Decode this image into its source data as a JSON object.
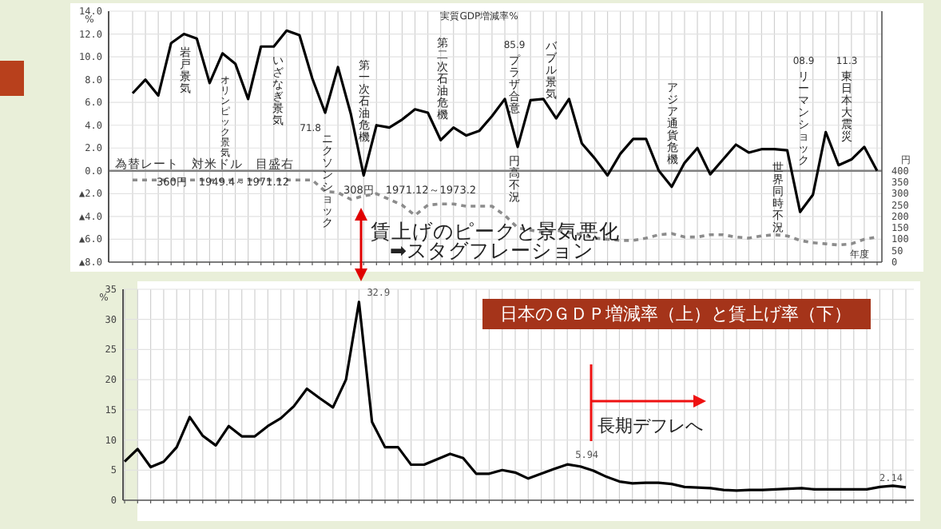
{
  "chart_data": [
    {
      "type": "line",
      "title": "実質GDP増減率%",
      "xlabel": "年度",
      "ylabel": "%",
      "y2label": "円",
      "categories": [
        null,
        null,
        null,
        null,
        null,
        null,
        null,
        null,
        null,
        null,
        null,
        null,
        null,
        null,
        null,
        null,
        null,
        null,
        null,
        null,
        null,
        null,
        null,
        null,
        null,
        null,
        null,
        null,
        null,
        null,
        null,
        null,
        null,
        null,
        null,
        null,
        null,
        null,
        null,
        null,
        null,
        null,
        null,
        null,
        null,
        null,
        null,
        null,
        null,
        null,
        null,
        null,
        null,
        null,
        null,
        null,
        null,
        null,
        null
      ],
      "ylim": [
        -8,
        14
      ],
      "yticks": [
        {
          "value": 14,
          "label": "14.0"
        },
        {
          "value": 12,
          "label": "12.0"
        },
        {
          "value": 10,
          "label": "10.0"
        },
        {
          "value": 8,
          "label": "8.0"
        },
        {
          "value": 6,
          "label": "6.0"
        },
        {
          "value": 4,
          "label": "4.0"
        },
        {
          "value": 2,
          "label": "2.0"
        },
        {
          "value": 0,
          "label": "0.0"
        },
        {
          "value": -2,
          "label": "▲2.0"
        },
        {
          "value": -4,
          "label": "▲4.0"
        },
        {
          "value": -6,
          "label": "▲6.0"
        },
        {
          "value": -8,
          "label": "▲8.0"
        }
      ],
      "y2lim": [
        0,
        1100
      ],
      "y2ticks": [
        0,
        50,
        100,
        150,
        200,
        250,
        300,
        350,
        400
      ],
      "grid": true,
      "ref_lines": [
        {
          "axis": "y",
          "value": 0,
          "color": "#808080"
        }
      ],
      "annotations": [
        "岩戸景気",
        "オリンピック景気",
        "いざなぎ景気",
        "71.8",
        "ニクソンショック",
        "第一次石油危機",
        "第二次石油危機",
        "85.9",
        "プラザ合意",
        "円高不況",
        "バブル景気",
        "アジア通貨危機",
        "08.9",
        "リーマンショック",
        "世界同時不況",
        "11.3",
        "東日本大震災",
        "為替レート　対米ドル　目盛右",
        "360円　1949.4～1971.12",
        "308円　1971.12～1973.2"
      ],
      "series": [
        {
          "color": "#000000",
          "values": [
            6.8,
            8.0,
            6.6,
            11.2,
            12.0,
            11.6,
            7.7,
            10.3,
            9.4,
            6.3,
            10.9,
            10.9,
            12.3,
            11.9,
            8.1,
            5.1,
            9.1,
            5.0,
            -0.4,
            4.0,
            3.8,
            4.5,
            5.4,
            5.1,
            2.7,
            3.8,
            3.1,
            3.5,
            4.8,
            6.3,
            2.1,
            6.2,
            6.3,
            4.6,
            6.3,
            2.4,
            1.1,
            -0.4,
            1.5,
            2.8,
            2.8,
            0.0,
            -1.4,
            0.7,
            2.0,
            -0.3,
            1.0,
            2.3,
            1.6,
            1.9,
            1.9,
            1.8,
            -3.6,
            -2.1,
            3.4,
            0.5,
            1.0,
            2.1,
            0.0
          ]
        },
        {
          "color": "#8c8c8c",
          "axis": "y2",
          "line_style": "dashed",
          "values": [
            360,
            360,
            360,
            360,
            360,
            360,
            360,
            360,
            360,
            360,
            360,
            360,
            360,
            360,
            360,
            310,
            305,
            275,
            290,
            300,
            275,
            250,
            205,
            250,
            255,
            255,
            245,
            245,
            245,
            205,
            150,
            140,
            130,
            140,
            130,
            120,
            105,
            100,
            95,
            95,
            105,
            120,
            125,
            110,
            110,
            120,
            120,
            110,
            105,
            115,
            120,
            115,
            95,
            85,
            80,
            75,
            80,
            100,
            110
          ]
        }
      ]
    },
    {
      "type": "line",
      "title": "日本のＧＤＰ増減率（上）と賃上げ率（下）",
      "ylabel": "%",
      "categories": [
        null,
        null,
        null,
        null,
        null,
        null,
        null,
        null,
        null,
        null,
        null,
        null,
        null,
        null,
        null,
        null,
        null,
        null,
        null,
        null,
        null,
        null,
        null,
        null,
        null,
        null,
        null,
        null,
        null,
        null,
        null,
        null,
        null,
        null,
        null,
        null,
        null,
        null,
        null,
        null,
        null,
        null,
        null,
        null,
        null,
        null,
        null,
        null,
        null,
        null,
        null,
        null,
        null,
        null,
        null,
        null,
        null,
        null,
        null,
        null,
        null
      ],
      "ylim": [
        0,
        35
      ],
      "yticks": [
        0,
        5,
        10,
        15,
        20,
        25,
        30,
        35
      ],
      "grid": true,
      "annotations": [
        "賃上げのピークと景気悪化",
        "➡スタグフレーション",
        "長期デフレへ"
      ],
      "series": [
        {
          "color": "#000000",
          "values": [
            6.4,
            8.5,
            5.5,
            6.4,
            8.8,
            13.8,
            10.7,
            9.1,
            12.3,
            10.6,
            10.6,
            12.3,
            13.6,
            15.6,
            18.5,
            16.9,
            15.4,
            20.0,
            32.9,
            13.0,
            8.8,
            8.8,
            5.9,
            5.9,
            6.8,
            7.7,
            7.0,
            4.4,
            4.4,
            5.0,
            4.6,
            3.6,
            4.4,
            5.2,
            5.94,
            5.6,
            4.9,
            3.9,
            3.1,
            2.8,
            2.9,
            2.9,
            2.7,
            2.2,
            2.1,
            2.0,
            1.7,
            1.6,
            1.7,
            1.7,
            1.8,
            1.9,
            2.0,
            1.8,
            1.8,
            1.8,
            1.8,
            1.8,
            2.2,
            2.4,
            2.14
          ],
          "value_labels": [
            null,
            null,
            null,
            null,
            null,
            null,
            null,
            null,
            null,
            null,
            null,
            null,
            null,
            null,
            null,
            null,
            null,
            null,
            "32.9",
            null,
            null,
            null,
            null,
            null,
            null,
            null,
            null,
            null,
            null,
            null,
            null,
            null,
            null,
            null,
            "5.94",
            null,
            null,
            null,
            null,
            null,
            null,
            null,
            null,
            null,
            null,
            null,
            null,
            null,
            null,
            null,
            null,
            null,
            null,
            null,
            null,
            null,
            null,
            null,
            null,
            null,
            "2.14"
          ]
        }
      ]
    }
  ]
}
